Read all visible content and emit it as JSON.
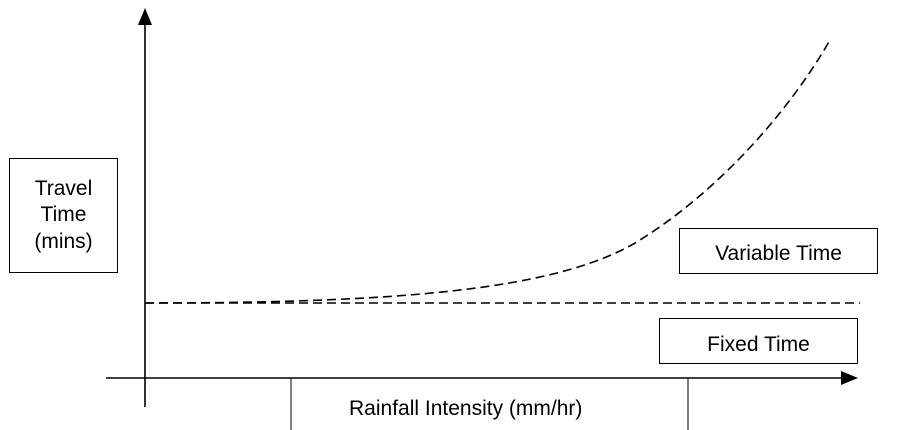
{
  "y_axis_label": {
    "line1": "Travel",
    "line2": "Time",
    "line3": "(mins)"
  },
  "x_axis_label": "Rainfall Intensity (mm/hr)",
  "curves": {
    "variable": "Variable Time",
    "fixed": "Fixed Time"
  }
}
